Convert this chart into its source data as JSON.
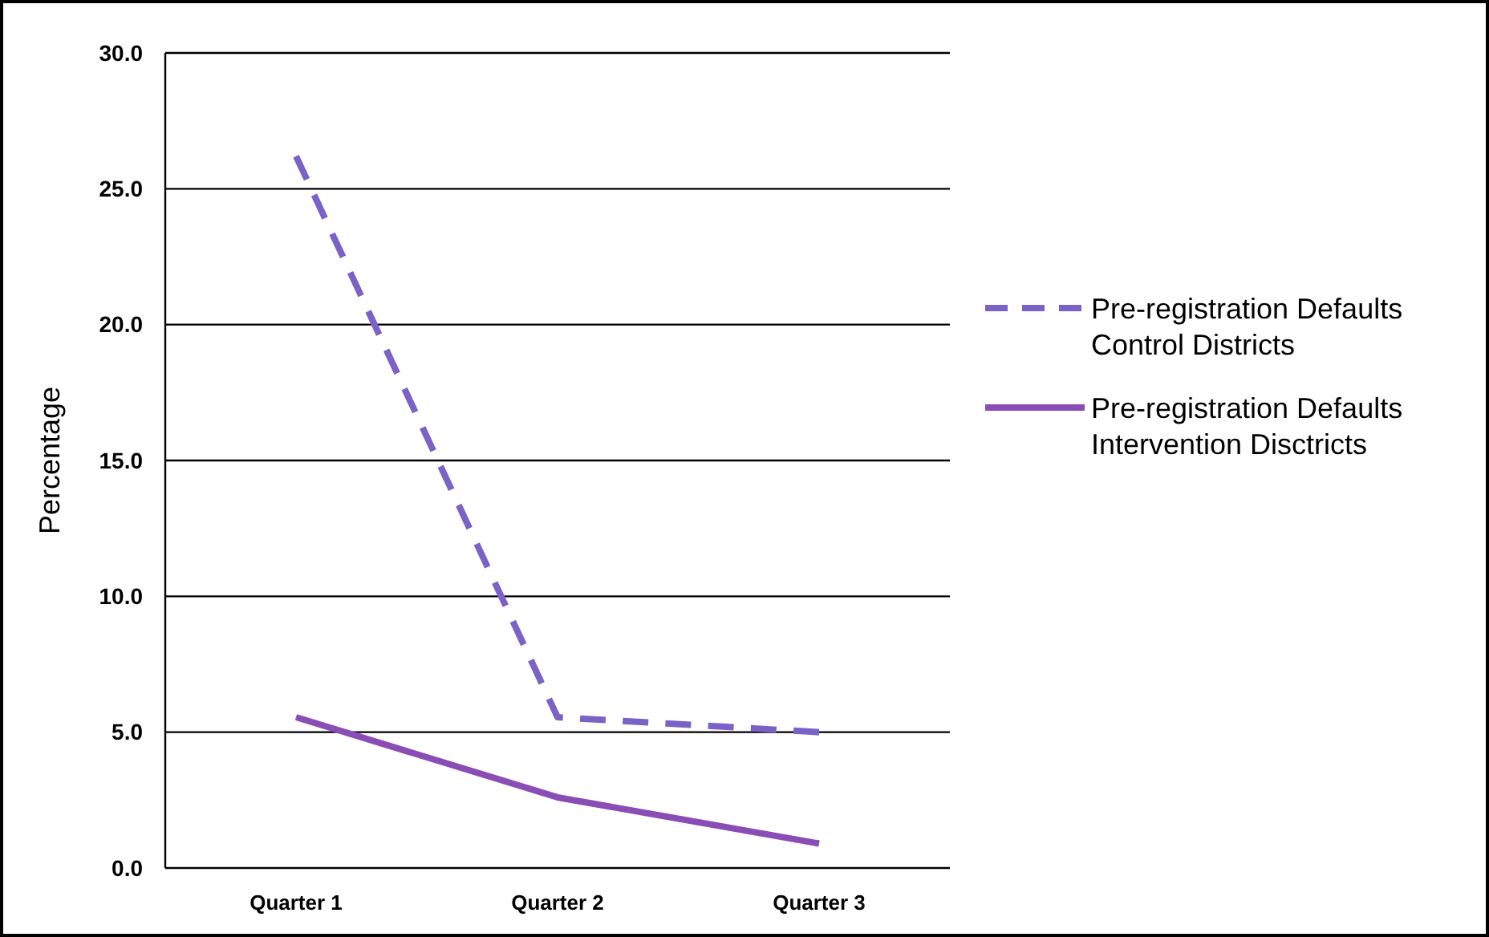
{
  "chart_data": {
    "type": "line",
    "ylabel": "Percentage",
    "categories": [
      "Quarter 1",
      "Quarter 2",
      "Quarter 3"
    ],
    "series": [
      {
        "name": "Pre-registration Defaults Control Districts",
        "color": "#7a62c6",
        "line_style": "dashed",
        "values": [
          26.2,
          5.55,
          5.0
        ]
      },
      {
        "name": "Pre-registration Defaults Intervention Disctricts",
        "color": "#8a4db6",
        "line_style": "solid",
        "values": [
          5.55,
          2.6,
          0.9
        ]
      }
    ],
    "ylim": [
      0,
      30
    ],
    "yticks": [
      {
        "value": 0,
        "label": "0.0"
      },
      {
        "value": 5,
        "label": "5.0"
      },
      {
        "value": 10,
        "label": "10.0"
      },
      {
        "value": 15,
        "label": "15.0"
      },
      {
        "value": 20,
        "label": "20.0"
      },
      {
        "value": 25,
        "label": "25.0"
      },
      {
        "value": 30,
        "label": "30.0"
      }
    ],
    "grid": "y",
    "legend": "right",
    "marker": "none"
  }
}
